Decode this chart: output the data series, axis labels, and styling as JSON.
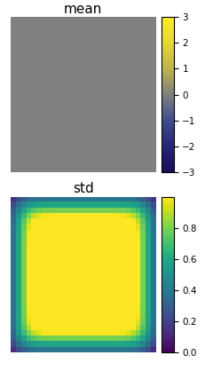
{
  "mean_value": 0.0,
  "mean_vmin": -3,
  "mean_vmax": 3,
  "std_vmin": 0.0,
  "std_vmax": 1.0,
  "image_size": 28,
  "mean_cmap": "viridis",
  "std_cmap": "viridis",
  "title_mean": "mean",
  "title_std": "std",
  "title_fontsize": 11,
  "fig_width": 2.4,
  "fig_height": 4.18,
  "fig_dpi": 100,
  "std_ticks": [
    0.0,
    0.2,
    0.4,
    0.6,
    0.8
  ],
  "mean_ticks": [
    -3,
    -2,
    -1,
    0,
    1,
    2,
    3
  ]
}
